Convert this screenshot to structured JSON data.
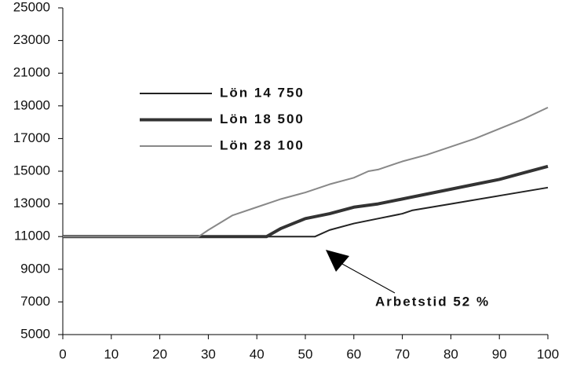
{
  "chart_data": {
    "type": "line",
    "annotation": "Arbetstid 52 %",
    "xlim": [
      0,
      100
    ],
    "xticks": [
      0,
      10,
      20,
      30,
      40,
      50,
      60,
      70,
      80,
      90,
      100
    ],
    "ylim": [
      5000,
      25000
    ],
    "yticks": [
      5000,
      7000,
      9000,
      11000,
      13000,
      15000,
      17000,
      19000,
      21000,
      23000,
      25000
    ],
    "grid": false,
    "series": [
      {
        "name": "Lön 14 750",
        "color": "#222222",
        "width": 2,
        "x": [
          0,
          52,
          55,
          60,
          65,
          70,
          72,
          80,
          90,
          100
        ],
        "values": [
          11000,
          11000,
          11400,
          11800,
          12100,
          12400,
          12600,
          13000,
          13500,
          14000
        ]
      },
      {
        "name": "Lön 18 500",
        "color": "#333333",
        "width": 4,
        "x": [
          0,
          42,
          45,
          50,
          55,
          60,
          65,
          70,
          75,
          80,
          85,
          90,
          95,
          100
        ],
        "values": [
          11000,
          11000,
          11500,
          12100,
          12400,
          12800,
          13000,
          13300,
          13600,
          13900,
          14200,
          14500,
          14900,
          15300
        ]
      },
      {
        "name": "Lön 28 100",
        "color": "#888888",
        "width": 2,
        "x": [
          0,
          28,
          30,
          35,
          40,
          45,
          50,
          55,
          60,
          63,
          65,
          70,
          75,
          80,
          85,
          90,
          95,
          100
        ],
        "values": [
          11000,
          11000,
          11400,
          12300,
          12800,
          13300,
          13700,
          14200,
          14600,
          15000,
          15100,
          15600,
          16000,
          16500,
          17000,
          17600,
          18200,
          18900
        ]
      }
    ]
  }
}
